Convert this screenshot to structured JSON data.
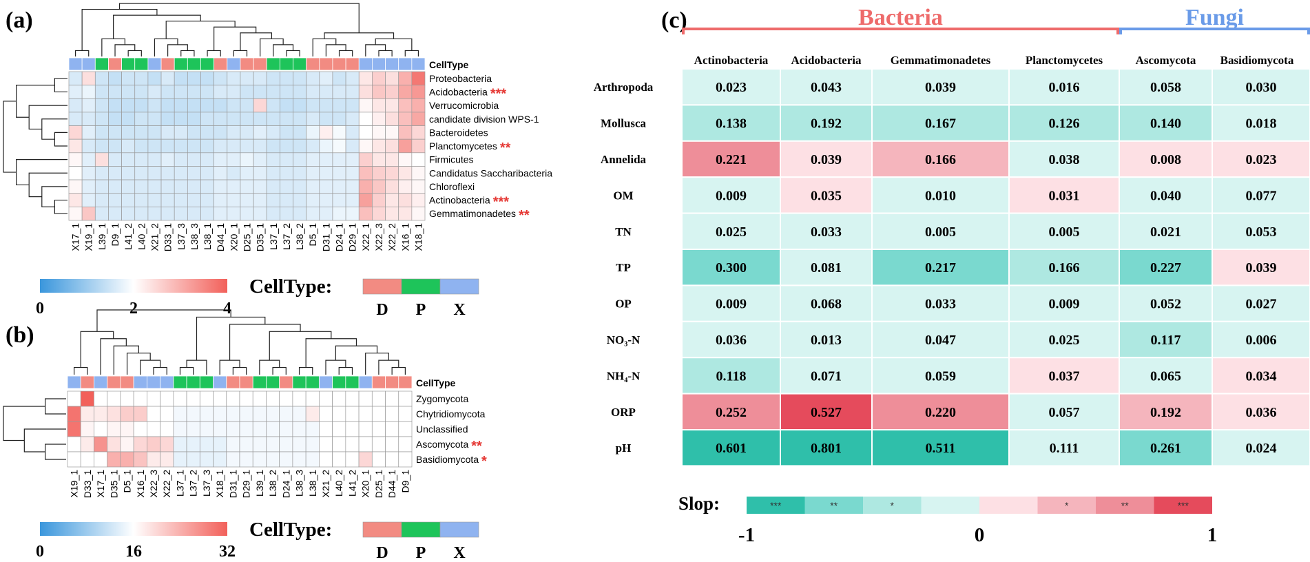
{
  "panel_labels": {
    "a": "(a)",
    "b": "(b)",
    "c": "(c)"
  },
  "celltype_colors": {
    "D": "#f28b82",
    "P": "#1ec45a",
    "X": "#8fb3f0"
  },
  "chart_data": [
    {
      "id": "a",
      "type": "heatmap",
      "celltype_label": "CellType",
      "columns": [
        "X17_1",
        "X19_1",
        "L39_1",
        "D9_1",
        "L41_2",
        "L40_2",
        "X21_2",
        "D33_1",
        "L37_3",
        "L38_3",
        "L38_1",
        "D44_1",
        "X20_1",
        "D25_1",
        "D35_1",
        "L37_1",
        "L37_2",
        "L38_2",
        "D5_1",
        "D31_1",
        "D24_1",
        "D29_1",
        "X22_1",
        "X22_3",
        "X22_2",
        "X16_1",
        "X18_1"
      ],
      "column_types": [
        "X",
        "X",
        "P",
        "D",
        "P",
        "P",
        "X",
        "D",
        "P",
        "P",
        "P",
        "D",
        "X",
        "D",
        "D",
        "P",
        "P",
        "P",
        "D",
        "D",
        "D",
        "D",
        "X",
        "X",
        "X",
        "X",
        "X"
      ],
      "rows": [
        "Proteobacteria",
        "Acidobacteria",
        "Verrucomicrobia",
        "candidate division WPS-1",
        "Bacteroidetes",
        "Planctomycetes",
        "Firmicutes",
        "Candidatus Saccharibacteria",
        "Chloroflexi",
        "Actinobacteria",
        "Gemmatimonadetes"
      ],
      "row_sig": [
        "",
        "***",
        "",
        "",
        "",
        "**",
        "",
        "",
        "",
        "***",
        "**"
      ],
      "values": [
        [
          1.6,
          2.4,
          1.5,
          1.4,
          1.5,
          1.5,
          1.4,
          1.6,
          1.4,
          1.4,
          1.4,
          1.5,
          1.6,
          1.6,
          1.6,
          1.5,
          1.5,
          1.5,
          1.6,
          1.7,
          1.5,
          1.6,
          2.3,
          2.6,
          2.4,
          3.0,
          3.7
        ],
        [
          1.7,
          1.8,
          1.5,
          1.5,
          1.5,
          1.5,
          1.6,
          1.5,
          1.5,
          1.5,
          1.5,
          1.6,
          1.6,
          1.5,
          1.5,
          1.5,
          1.5,
          1.5,
          1.6,
          1.6,
          1.6,
          1.6,
          2.4,
          2.7,
          2.6,
          3.1,
          3.3
        ],
        [
          1.6,
          1.7,
          1.5,
          1.4,
          1.4,
          1.4,
          1.5,
          1.4,
          1.4,
          1.4,
          1.4,
          1.4,
          1.5,
          1.5,
          2.5,
          1.5,
          1.4,
          1.4,
          1.5,
          1.5,
          1.5,
          1.5,
          2.1,
          2.3,
          2.3,
          2.8,
          3.0
        ],
        [
          1.6,
          1.6,
          1.5,
          1.4,
          1.4,
          1.5,
          1.5,
          1.4,
          1.4,
          1.4,
          1.5,
          1.5,
          1.5,
          1.5,
          1.5,
          1.5,
          1.5,
          1.5,
          1.6,
          1.5,
          1.5,
          1.6,
          2.0,
          2.2,
          2.4,
          2.8,
          3.1
        ],
        [
          2.5,
          1.7,
          1.5,
          1.5,
          1.5,
          1.5,
          1.5,
          1.6,
          1.6,
          1.5,
          1.5,
          1.5,
          1.6,
          1.6,
          1.7,
          1.6,
          1.5,
          1.5,
          1.8,
          2.2,
          1.9,
          1.6,
          2.0,
          2.1,
          2.1,
          2.8,
          2.5
        ],
        [
          2.3,
          1.6,
          1.5,
          1.5,
          1.6,
          1.5,
          1.5,
          1.5,
          1.5,
          1.5,
          1.5,
          1.6,
          1.6,
          1.6,
          1.6,
          1.5,
          1.5,
          1.5,
          1.6,
          1.8,
          1.9,
          1.6,
          2.1,
          2.3,
          2.4,
          3.2,
          2.6
        ],
        [
          2.1,
          1.7,
          2.4,
          1.6,
          1.6,
          1.6,
          1.6,
          1.7,
          1.6,
          1.6,
          1.6,
          1.7,
          1.7,
          1.8,
          1.7,
          1.6,
          1.6,
          1.6,
          1.7,
          1.7,
          1.7,
          1.7,
          2.6,
          2.3,
          2.3,
          2.1,
          2.0
        ],
        [
          2.0,
          1.7,
          1.6,
          1.6,
          1.6,
          1.6,
          1.6,
          1.6,
          1.6,
          1.6,
          1.6,
          1.7,
          1.6,
          1.7,
          1.7,
          1.6,
          1.6,
          1.6,
          1.7,
          1.7,
          1.7,
          1.7,
          2.8,
          2.6,
          2.5,
          2.3,
          2.1
        ],
        [
          2.1,
          1.7,
          1.6,
          1.6,
          1.6,
          1.6,
          1.6,
          1.6,
          1.6,
          1.6,
          1.6,
          1.7,
          1.7,
          1.7,
          1.7,
          1.6,
          1.6,
          1.6,
          1.7,
          1.7,
          1.7,
          1.7,
          3.0,
          2.7,
          2.4,
          2.2,
          2.1
        ],
        [
          2.3,
          1.7,
          1.6,
          1.6,
          1.6,
          1.6,
          1.6,
          1.6,
          1.6,
          1.6,
          1.6,
          1.7,
          1.7,
          1.7,
          1.7,
          1.6,
          1.6,
          1.6,
          1.7,
          1.7,
          1.7,
          1.7,
          3.2,
          2.6,
          2.3,
          2.4,
          2.2
        ],
        [
          2.1,
          2.7,
          1.6,
          1.6,
          1.6,
          1.6,
          1.6,
          1.6,
          1.6,
          1.6,
          1.6,
          1.7,
          1.7,
          1.7,
          1.7,
          1.6,
          1.6,
          1.6,
          1.7,
          1.7,
          1.8,
          1.8,
          2.8,
          2.5,
          2.3,
          2.3,
          2.1
        ]
      ],
      "scale": {
        "min": 0,
        "mid": 2,
        "max": 4,
        "labels": [
          "0",
          "2",
          "4"
        ]
      },
      "legend": {
        "title": "CellType:",
        "items": [
          "D",
          "P",
          "X"
        ]
      }
    },
    {
      "id": "b",
      "type": "heatmap",
      "celltype_label": "CellType",
      "columns": [
        "X19_1",
        "D33_1",
        "X17_1",
        "D35_1",
        "D5_1",
        "X16_1",
        "X22_3",
        "X22_2",
        "L37_1",
        "L37_2",
        "L37_3",
        "X18_1",
        "D31_1",
        "D29_1",
        "L39_1",
        "L38_2",
        "D24_1",
        "L38_3",
        "L38_1",
        "X21_2",
        "L40_2",
        "L41_2",
        "X20_1",
        "D25_1",
        "D44_1",
        "D9_1"
      ],
      "column_types": [
        "X",
        "D",
        "X",
        "D",
        "D",
        "X",
        "X",
        "X",
        "P",
        "P",
        "P",
        "X",
        "D",
        "D",
        "P",
        "P",
        "D",
        "P",
        "P",
        "X",
        "P",
        "P",
        "X",
        "D",
        "D",
        "D"
      ],
      "rows": [
        "Zygomycota",
        "Chytridiomycota",
        "Unclassified",
        "Ascomycota",
        "Basidiomycota"
      ],
      "row_sig": [
        "",
        "",
        "",
        "**",
        "*"
      ],
      "values": [
        [
          16,
          32,
          16,
          16,
          16,
          16,
          16,
          16,
          16,
          16,
          16,
          16,
          16,
          16,
          16,
          16,
          16,
          16,
          16,
          16,
          16,
          16,
          16,
          16,
          16,
          16
        ],
        [
          30,
          18,
          18,
          19,
          21,
          21,
          16,
          16,
          15,
          15,
          15,
          15,
          15,
          15,
          15,
          15,
          15,
          15,
          18,
          16,
          16,
          16,
          16,
          16,
          16,
          16
        ],
        [
          30,
          17,
          16,
          17,
          17,
          16,
          16,
          16,
          15,
          15,
          15,
          15,
          15,
          15,
          15,
          15,
          15,
          15,
          15,
          16,
          16,
          16,
          16,
          16,
          16,
          16
        ],
        [
          16,
          18,
          27,
          19,
          17,
          20,
          21,
          20,
          14,
          14,
          14,
          14,
          15,
          15,
          15,
          15,
          15,
          15,
          15,
          16,
          16,
          16,
          16,
          16,
          16,
          16
        ],
        [
          16,
          16,
          16,
          24,
          24,
          22,
          18,
          18,
          14,
          14,
          14,
          14,
          15,
          15,
          15,
          15,
          15,
          15,
          15,
          16,
          16,
          16,
          20,
          16,
          16,
          16
        ]
      ],
      "scale": {
        "min": 0,
        "mid": 16,
        "max": 32,
        "labels": [
          "0",
          "16",
          "32"
        ]
      },
      "legend": {
        "title": "CellType:",
        "items": [
          "D",
          "P",
          "X"
        ]
      }
    },
    {
      "id": "c",
      "type": "table",
      "groups": [
        {
          "name": "Bacteria",
          "span": 4,
          "color": "#ee6b6b"
        },
        {
          "name": "Fungi",
          "span": 2,
          "color": "#6a9be8"
        }
      ],
      "columns": [
        "Actinobacteria",
        "Acidobacteria",
        "Gemmatimonadetes",
        "Planctomycetes",
        "Ascomycota",
        "Basidiomycota"
      ],
      "rows": [
        "Arthropoda",
        "Mollusca",
        "Annelida",
        "OM",
        "TN",
        "TP",
        "OP",
        "NO₃-N",
        "NH₄-N",
        "ORP",
        "pH"
      ],
      "values": [
        [
          "0.023",
          "0.043",
          "0.039",
          "0.016",
          "0.058",
          "0.030"
        ],
        [
          "0.138",
          "0.192",
          "0.167",
          "0.126",
          "0.140",
          "0.018"
        ],
        [
          "0.221",
          "0.039",
          "0.166",
          "0.038",
          "0.008",
          "0.023"
        ],
        [
          "0.009",
          "0.035",
          "0.010",
          "0.031",
          "0.040",
          "0.077"
        ],
        [
          "0.025",
          "0.033",
          "0.005",
          "0.005",
          "0.021",
          "0.053"
        ],
        [
          "0.300",
          "0.081",
          "0.217",
          "0.166",
          "0.227",
          "0.039"
        ],
        [
          "0.009",
          "0.068",
          "0.033",
          "0.009",
          "0.052",
          "0.027"
        ],
        [
          "0.036",
          "0.013",
          "0.047",
          "0.025",
          "0.117",
          "0.006"
        ],
        [
          "0.118",
          "0.071",
          "0.059",
          "0.037",
          "0.065",
          "0.034"
        ],
        [
          "0.252",
          "0.527",
          "0.220",
          "0.057",
          "0.192",
          "0.036"
        ],
        [
          "0.601",
          "0.801",
          "0.511",
          "0.111",
          "0.261",
          "0.024"
        ]
      ],
      "levels": [
        [
          -1,
          -1,
          -1,
          -1,
          -1,
          -1
        ],
        [
          -2,
          -2,
          -2,
          -2,
          -2,
          -1
        ],
        [
          3,
          1,
          2,
          -1,
          1,
          1
        ],
        [
          -1,
          1,
          -1,
          1,
          -1,
          -1
        ],
        [
          -1,
          -1,
          -1,
          -1,
          -1,
          -1
        ],
        [
          -3,
          -1,
          -3,
          -2,
          -3,
          1
        ],
        [
          -1,
          -1,
          -1,
          -1,
          -1,
          -1
        ],
        [
          -1,
          -1,
          -1,
          -1,
          -2,
          -1
        ],
        [
          -2,
          -1,
          -1,
          1,
          -1,
          1
        ],
        [
          3,
          4,
          3,
          -1,
          2,
          1
        ],
        [
          -4,
          -4,
          -4,
          -1,
          -3,
          -1
        ]
      ],
      "legend": {
        "title": "Slop:",
        "colors": [
          "#2fbfaa",
          "#7ad9cf",
          "#aee8e1",
          "#d7f4f1",
          "#fde0e4",
          "#f5b5bd",
          "#ee8e99",
          "#e54b5c"
        ],
        "stars": [
          "***",
          "**",
          "*",
          "",
          "",
          "*",
          "**",
          "***"
        ],
        "ticks": [
          "-1",
          "0",
          "1"
        ]
      }
    }
  ]
}
